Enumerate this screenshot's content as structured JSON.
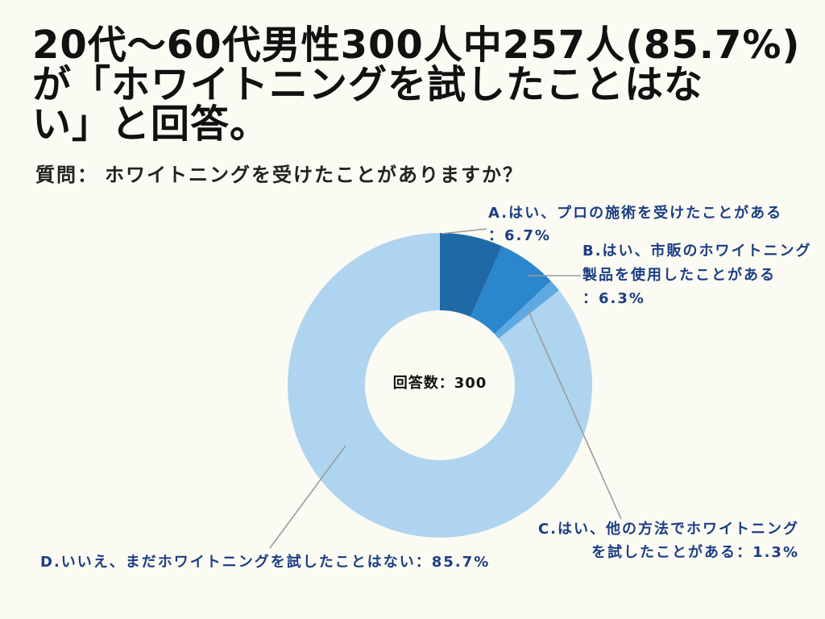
{
  "colors": {
    "background": "#fbfaf3",
    "text": "#111111",
    "label": "#1c3e84",
    "leader_line": "#9c9c9c"
  },
  "chart_data": {
    "type": "pie",
    "donut": true,
    "title": [
      "20代〜60代男性300人中257人(85.7%)",
      "が「ホワイトニングを試したことはな",
      "い」と回答。"
    ],
    "subtitle_label": "質問：",
    "subtitle": "ホワイトニングを受けたことがありますか？",
    "categories": [
      "A.はい、プロの施術を受けたことがある",
      "B.はい、市販のホワイトニング製品を使用したことがある",
      "C.はい、他の方法でホワイトニングを試したことがある",
      "D.いいえ、まだホワイトニングを試したことはない"
    ],
    "values": [
      6.7,
      6.3,
      1.3,
      85.7
    ],
    "label_separator": "：",
    "unit": "%",
    "colors": [
      "#1f6aa6",
      "#2a86cd",
      "#5ea9e2",
      "#afd4ef"
    ],
    "center_label": "回答数：300"
  }
}
